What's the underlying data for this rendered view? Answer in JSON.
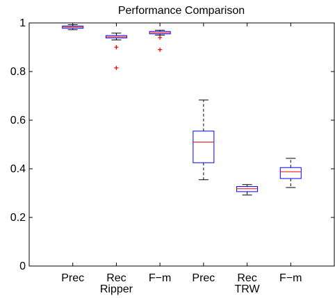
{
  "chart_data": {
    "type": "boxplot",
    "title": "Performance Comparison",
    "ylim": [
      0,
      1
    ],
    "y_ticks": [
      "0",
      "0.2",
      "0.4",
      "0.6",
      "0.8",
      "1"
    ],
    "y_tick_values": [
      0,
      0.2,
      0.4,
      0.6,
      0.8,
      1.0
    ],
    "categories": [
      "Prec",
      "Rec",
      "F−m",
      "Prec",
      "Rec",
      "F−m"
    ],
    "groups": [
      {
        "label": "Ripper",
        "members": [
          0,
          1,
          2
        ]
      },
      {
        "label": "TRW",
        "members": [
          3,
          4,
          5
        ]
      }
    ],
    "boxes": [
      {
        "whisker_low": 0.972,
        "q1": 0.978,
        "median": 0.983,
        "q3": 0.987,
        "whisker_high": 0.993,
        "outliers": []
      },
      {
        "whisker_low": 0.93,
        "q1": 0.938,
        "median": 0.943,
        "q3": 0.948,
        "whisker_high": 0.958,
        "outliers": [
          0.9,
          0.815
        ]
      },
      {
        "whisker_low": 0.95,
        "q1": 0.955,
        "median": 0.96,
        "q3": 0.965,
        "whisker_high": 0.97,
        "outliers": [
          0.94,
          0.89
        ]
      },
      {
        "whisker_low": 0.355,
        "q1": 0.425,
        "median": 0.51,
        "q3": 0.555,
        "whisker_high": 0.683,
        "outliers": []
      },
      {
        "whisker_low": 0.292,
        "q1": 0.306,
        "median": 0.318,
        "q3": 0.327,
        "whisker_high": 0.335,
        "outliers": []
      },
      {
        "whisker_low": 0.323,
        "q1": 0.36,
        "median": 0.388,
        "q3": 0.405,
        "whisker_high": 0.443,
        "outliers": []
      }
    ],
    "colors": {
      "box": "#0000ff",
      "median": "#ff0000",
      "whisker": "#000000",
      "outlier": "#ff0000",
      "axes": "#000000"
    },
    "grid": false,
    "legend": "none"
  }
}
